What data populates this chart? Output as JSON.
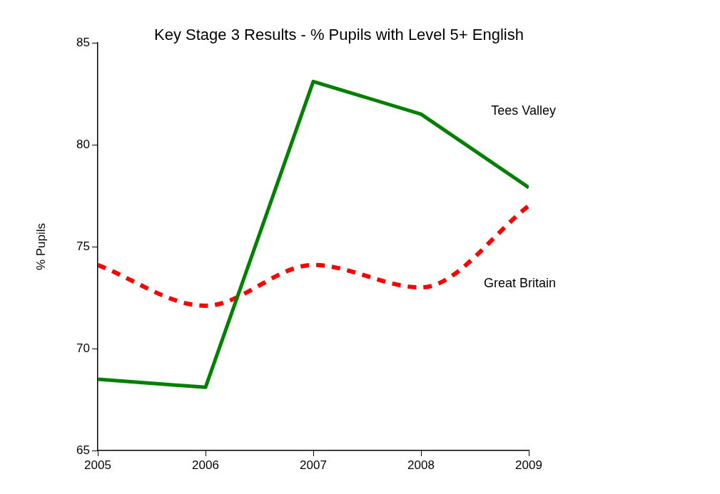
{
  "chart_data": {
    "type": "line",
    "title": "Key Stage 3 Results - % Pupils with Level 5+ English",
    "ylabel": "% Pupils",
    "x": [
      2005,
      2006,
      2007,
      2008,
      2009
    ],
    "xlim": [
      2005,
      2009
    ],
    "xticks": [
      2005,
      2006,
      2007,
      2008,
      2009
    ],
    "ylim": [
      65,
      85
    ],
    "yticks": [
      65,
      70,
      75,
      80,
      85
    ],
    "grid": false,
    "legend": false,
    "marker": "none",
    "series": [
      {
        "name": "Tees Valley",
        "color": "#008000",
        "line_style": "solid",
        "values": [
          68.5,
          68.1,
          83.1,
          81.5,
          77.9
        ]
      },
      {
        "name": "Great Britain",
        "color": "#ff0000",
        "line_style": "dashed",
        "values": [
          74.1,
          72.1,
          74.1,
          73.0,
          77.0
        ]
      }
    ]
  }
}
